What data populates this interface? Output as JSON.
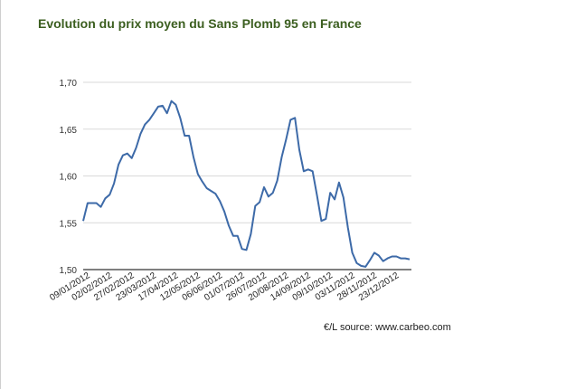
{
  "title": "Evolution du prix moyen du Sans Plomb 95 en France",
  "source": "€/L source: www.carbeo.com",
  "chart_data": {
    "type": "line",
    "title": "Evolution du prix moyen du Sans Plomb 95 en France",
    "xlabel": "",
    "ylabel": "",
    "ylim": [
      1.5,
      1.7
    ],
    "yticks": [
      "1,50",
      "1,55",
      "1,60",
      "1,65",
      "1,70"
    ],
    "grid": true,
    "legend": "none",
    "color": "#3d6aa8",
    "xtick_labels": [
      "09/01/2012",
      "02/02/2012",
      "27/02/2012",
      "23/03/2012",
      "17/04/2012",
      "12/05/2012",
      "06/06/2012",
      "01/07/2012",
      "26/07/2012",
      "20/08/2012",
      "14/09/2012",
      "09/10/2012",
      "03/11/2012",
      "28/11/2012",
      "23/12/2012"
    ],
    "values": [
      1.552,
      1.571,
      1.571,
      1.571,
      1.567,
      1.576,
      1.58,
      1.592,
      1.612,
      1.622,
      1.624,
      1.619,
      1.63,
      1.645,
      1.655,
      1.66,
      1.667,
      1.674,
      1.675,
      1.667,
      1.68,
      1.676,
      1.662,
      1.643,
      1.643,
      1.62,
      1.602,
      1.594,
      1.587,
      1.584,
      1.581,
      1.573,
      1.562,
      1.547,
      1.536,
      1.536,
      1.522,
      1.521,
      1.538,
      1.568,
      1.572,
      1.588,
      1.578,
      1.582,
      1.595,
      1.62,
      1.639,
      1.66,
      1.662,
      1.628,
      1.605,
      1.607,
      1.605,
      1.579,
      1.552,
      1.554,
      1.582,
      1.575,
      1.593,
      1.577,
      1.545,
      1.518,
      1.507,
      1.504,
      1.503,
      1.51,
      1.518,
      1.515,
      1.509,
      1.512,
      1.514,
      1.514,
      1.512,
      1.512,
      1.511
    ]
  }
}
